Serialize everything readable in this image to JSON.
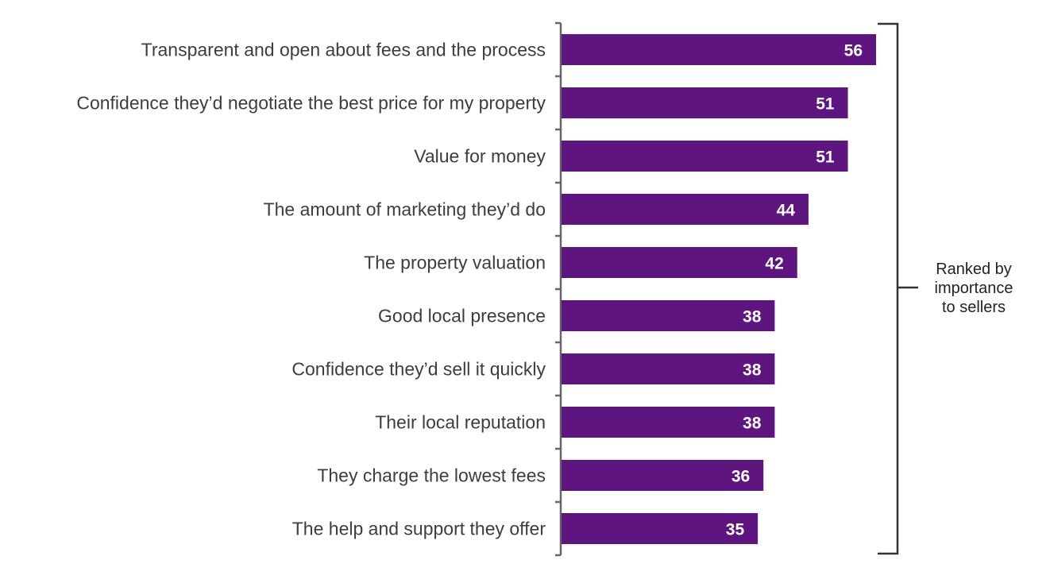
{
  "chart_data": {
    "type": "bar",
    "orientation": "horizontal",
    "categories": [
      "Transparent and open about fees and the process",
      "Confidence they’d negotiate the best price for my property",
      "Value for money",
      "The amount of marketing they’d do",
      "The property valuation",
      "Good local presence",
      "Confidence they’d sell it quickly",
      "Their local reputation",
      "They charge the lowest fees",
      "The help and support they offer"
    ],
    "values": [
      56,
      51,
      51,
      44,
      42,
      38,
      38,
      38,
      36,
      35
    ],
    "xlim": [
      0,
      56
    ],
    "grid": false,
    "bar_color": "#5f1580",
    "annotation": [
      "Ranked by",
      "importance",
      "to sellers"
    ]
  }
}
